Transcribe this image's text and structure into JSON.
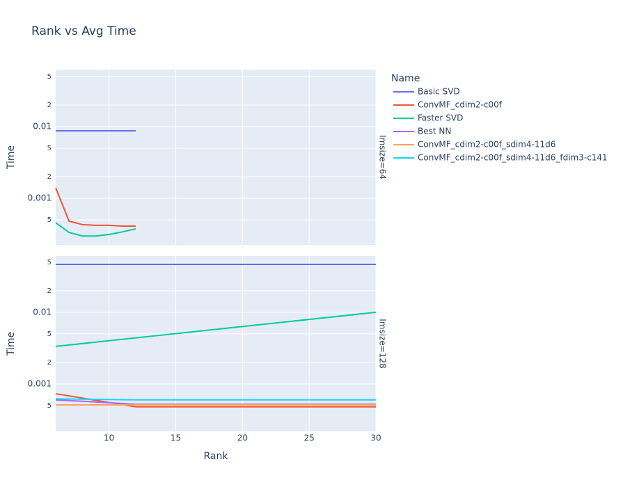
{
  "title": "Rank vs Avg Time",
  "legend": {
    "title": "Name"
  },
  "chart_data": [
    {
      "type": "line",
      "facet_label": "Imsize=64",
      "ylabel": "Time",
      "log_y": true,
      "grid": true,
      "xlim": [
        6,
        30
      ],
      "xticks": [
        10,
        15,
        20,
        25,
        30
      ],
      "ylim": [
        0.000224,
        0.0625
      ],
      "yticks": [
        {
          "value": 0.0005,
          "label": "5"
        },
        0.001,
        {
          "value": 0.002,
          "label": "2"
        },
        {
          "value": 0.005,
          "label": "5"
        },
        0.01,
        {
          "value": 0.02,
          "label": "2"
        },
        {
          "value": 0.05,
          "label": "5"
        }
      ],
      "series": [
        {
          "name": "Basic SVD",
          "color": "#636efa",
          "x": [
            6,
            7,
            8,
            9,
            10,
            11,
            12
          ],
          "values": [
            0.00875,
            0.00875,
            0.00875,
            0.00875,
            0.00875,
            0.00875,
            0.00875
          ]
        },
        {
          "name": "ConvMF_cdim2-c00f",
          "color": "#ef553b",
          "x": [
            6,
            7,
            8,
            9,
            10,
            11,
            12
          ],
          "values": [
            0.0014,
            0.00048,
            0.00043,
            0.00042,
            0.00042,
            0.00041,
            0.00041
          ]
        },
        {
          "name": "Faster SVD",
          "color": "#00cc96",
          "x": [
            6,
            7,
            8,
            9,
            10,
            11,
            12
          ],
          "values": [
            0.000457,
            0.000334,
            0.000298,
            0.000298,
            0.000313,
            0.00034,
            0.000375
          ]
        }
      ]
    },
    {
      "type": "line",
      "facet_label": "Imsize=128",
      "ylabel": "Time",
      "xlabel": "Rank",
      "log_y": true,
      "grid": true,
      "xlim": [
        6,
        30
      ],
      "xticks": [
        10,
        15,
        20,
        25,
        30
      ],
      "ylim": [
        0.000218,
        0.061
      ],
      "yticks": [
        {
          "value": 0.0005,
          "label": "5"
        },
        0.001,
        {
          "value": 0.002,
          "label": "2"
        },
        {
          "value": 0.005,
          "label": "5"
        },
        0.01,
        {
          "value": 0.02,
          "label": "2"
        },
        {
          "value": 0.05,
          "label": "5"
        }
      ],
      "series": [
        {
          "name": "Basic SVD",
          "color": "#636efa",
          "x": [
            6,
            30
          ],
          "values": [
            0.0467,
            0.0467
          ]
        },
        {
          "name": "ConvMF_cdim2-c00f",
          "color": "#ef553b",
          "x": [
            6,
            12,
            30
          ],
          "values": [
            0.00073,
            0.00048,
            0.00048
          ]
        },
        {
          "name": "Faster SVD",
          "color": "#00cc96",
          "x": [
            6,
            30
          ],
          "values": [
            0.00334,
            0.01
          ]
        },
        {
          "name": "Best NN",
          "color": "#ab63fa",
          "x": [
            6,
            9,
            12,
            30
          ],
          "values": [
            0.0006,
            0.00056,
            0.00052,
            0.00052
          ]
        },
        {
          "name": "ConvMF_cdim2-c00f_sdim4-11d6",
          "color": "#ffa15a",
          "x": [
            6,
            30
          ],
          "values": [
            0.00051,
            0.00051
          ]
        },
        {
          "name": "ConvMF_cdim2-c00f_sdim4-11d6_fdim3-c141",
          "color": "#19d3f3",
          "x": [
            6,
            12,
            30
          ],
          "values": [
            0.00062,
            0.0006,
            0.0006
          ]
        }
      ]
    }
  ]
}
